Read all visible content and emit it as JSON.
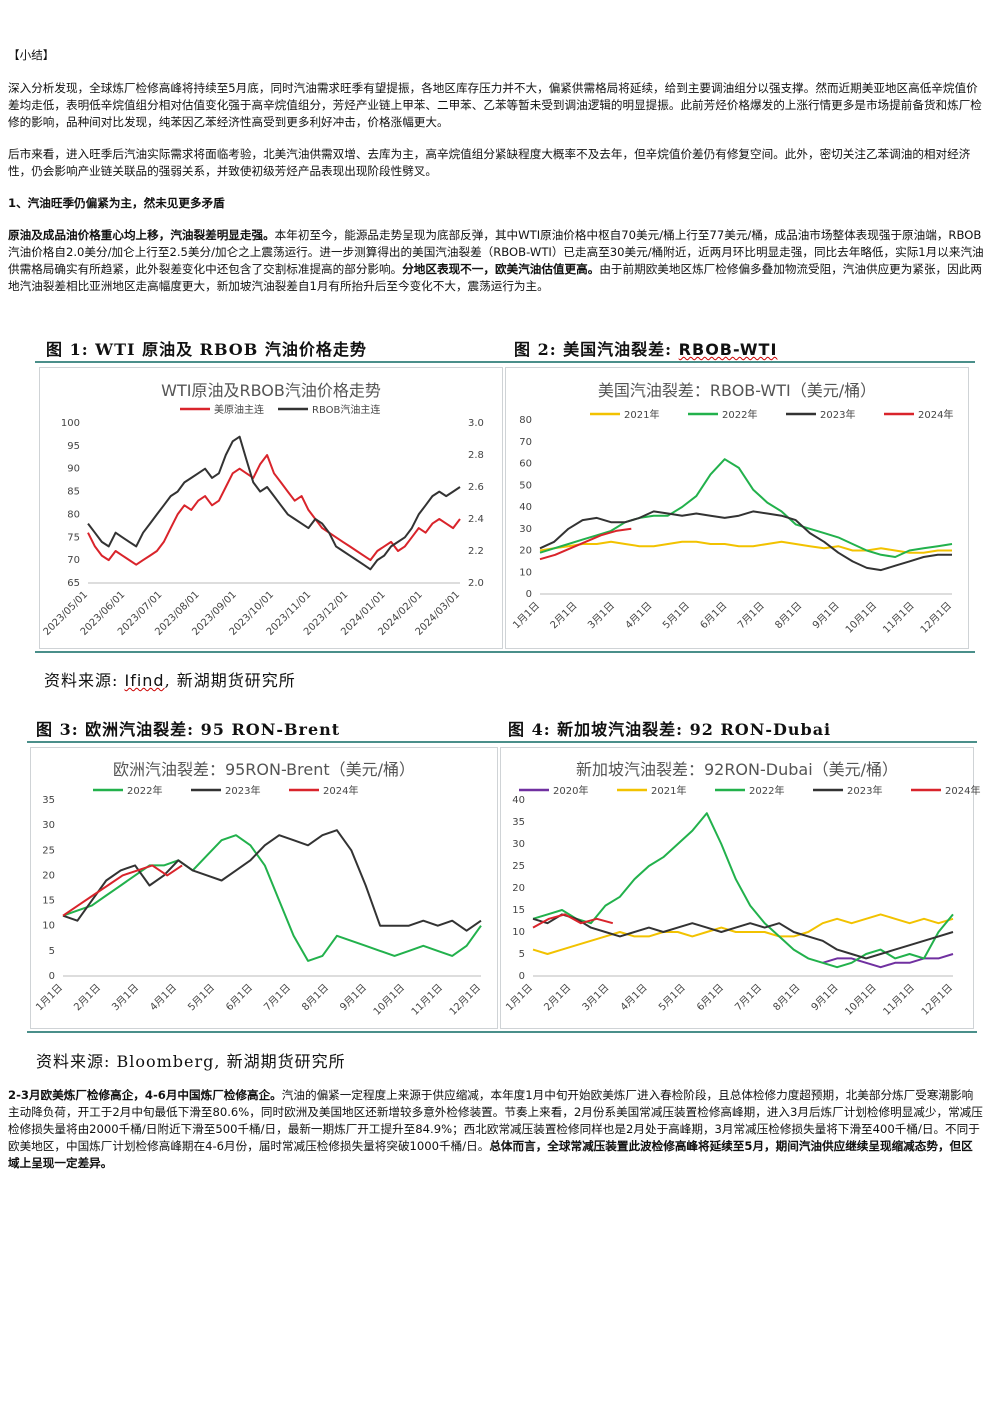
{
  "summary": {
    "heading": "【小结】",
    "para1": "深入分析发现，全球炼厂检修高峰将持续至5月底，同时汽油需求旺季有望提振，各地区库存压力并不大，偏紧供需格局将延续，给到主要调油组分以强支撑。然而近期美亚地区高低辛烷值价差均走低，表明低辛烷值组分相对估值变化强于高辛烷值组分，芳烃产业链上甲苯、二甲苯、乙苯等暂未受到调油逻辑的明显提振。此前芳烃价格爆发的上涨行情更多是市场提前备货和炼厂检修的影响，品种间对比发现，纯苯因乙苯经济性高受到更多利好冲击，价格涨幅更大。",
    "para2": "后市来看，进入旺季后汽油实际需求将面临考验，北美汽油供需双增、去库为主，高辛烷值组分紧缺程度大概率不及去年，但辛烷值价差仍有修复空间。此外，密切关注乙苯调油的相对经济性，仍会影响产业链关联品的强弱关系，并致使初级芳烃产品表现出现阶段性劈叉。"
  },
  "section1": {
    "title": "1、汽油旺季仍偏紧为主，然未见更多矛盾",
    "bold1": "原油及成品油价格重心均上移，汽油裂差明显走强。",
    "text1": "本年初至今，能源品走势呈现为底部反弹，其中WTI原油价格中枢自70美元/桶上行至77美元/桶，成品油市场整体表现强于原油端，RBOB汽油价格自2.0美分/加仑上行至2.5美分/加仑之上震荡运行。进一步测算得出的美国汽油裂差（RBOB-WTI）已走高至30美元/桶附近，近两月环比明显走强，同比去年略低，实际1月以来汽油供需格局确实有所趋紧，此外裂差变化中还包含了交割标准提高的部分影响。",
    "bold2": "分地区表现不一，欧美汽油估值更高。",
    "text2": "由于前期欧美地区炼厂检修偏多叠加物流受阻，汽油供应更为紧张，因此两地汽油裂差相比亚洲地区走高幅度更大，新加坡汽油裂差自1月有所抬升后至今变化不大，震荡运行为主。"
  },
  "figures": {
    "fig1_caption": "图 1:  WTI 原油及 RBOB 汽油价格走势",
    "fig2_caption_prefix": "图 2:  美国汽油裂差: ",
    "fig2_caption_code": "RBOB-WTI",
    "fig3_caption": "图 3:  欧洲汽油裂差: 95 RON-Brent",
    "fig4_caption": "图 4:  新加坡汽油裂差: 92 RON-Dubai",
    "source1_prefix": "资料来源: ",
    "source1_name": "Ifind",
    "source1_suffix": ", 新湖期货研究所",
    "source2": "资料来源: Bloomberg, 新湖期货研究所"
  },
  "colors": {
    "red": "#d9242b",
    "dark": "#333333",
    "green": "#22b14c",
    "gold": "#f2c200",
    "purple": "#7030a0",
    "rule": "#4a8f8a"
  },
  "section2": {
    "bold1": "2-3月欧美炼厂检修高企，4-6月中国炼厂检修高企。",
    "text1": "汽油的偏紧一定程度上来源于供应缩减，本年度1月中旬开始欧美炼厂进入春检阶段，且总体检修力度超预期，北美部分炼厂受寒潮影响主动降负荷，开工于2月中旬最低下滑至80.6%，同时欧洲及美国地区还新增较多意外检修装置。节奏上来看，2月份系美国常减压装置检修高峰期，进入3月后炼厂计划检修明显减少，常减压检修损失量将由2000千桶/日附近下滑至500千桶/日，最新一期炼厂开工提升至84.9%；西北欧常减压装置检修同样也是2月处于高峰期，3月常减压检修损失量将下滑至400千桶/日。不同于欧美地区，中国炼厂计划检修高峰期在4-6月份，届时常减压检修损失量将突破1000千桶/日。",
    "bold2": "总体而言，全球常减压装置此波检修高峰将延续至5月，期间汽油供应继续呈现缩减态势，但区域上呈现一定差异。"
  },
  "chart_data": [
    {
      "type": "line",
      "title": "WTI原油及RBOB汽油价格走势",
      "x_ticks": [
        "2023/05/01",
        "2023/06/01",
        "2023/07/01",
        "2023/08/01",
        "2023/09/01",
        "2023/10/01",
        "2023/11/01",
        "2023/12/01",
        "2024/01/01",
        "2024/02/01",
        "2024/03/01"
      ],
      "ylim_left": [
        65,
        100
      ],
      "yticks_left": [
        "100",
        "95",
        "90",
        "85",
        "80",
        "75",
        "70",
        "65"
      ],
      "ylim_right": [
        2.0,
        3.0
      ],
      "yticks_right": [
        "3.0",
        "2.8",
        "2.6",
        "2.4",
        "2.2",
        "2.0"
      ],
      "series": [
        {
          "name": "美原油主连",
          "axis": "left",
          "color": "#d9242b",
          "values": [
            76,
            73,
            71,
            70,
            72,
            71,
            70,
            69,
            70,
            71,
            72,
            74,
            77,
            80,
            82,
            81,
            83,
            84,
            82,
            83,
            86,
            89,
            90,
            89,
            88,
            91,
            93,
            89,
            87,
            85,
            83,
            84,
            81,
            79,
            77,
            76,
            75,
            74,
            73,
            72,
            71,
            70,
            72,
            73,
            74,
            72,
            73,
            75,
            77,
            76,
            78,
            79,
            78,
            77,
            79
          ]
        },
        {
          "name": "RBOB汽油主连",
          "axis": "left",
          "color": "#333333",
          "values": [
            78,
            76,
            74,
            73,
            76,
            75,
            74,
            73,
            76,
            78,
            80,
            82,
            84,
            85,
            87,
            88,
            89,
            90,
            88,
            89,
            93,
            96,
            97,
            92,
            87,
            85,
            86,
            84,
            82,
            80,
            79,
            78,
            77,
            79,
            78,
            76,
            73,
            72,
            71,
            70,
            69,
            68,
            70,
            71,
            73,
            74,
            75,
            77,
            80,
            82,
            84,
            85,
            84,
            85,
            86
          ]
        }
      ]
    },
    {
      "type": "line",
      "title": "美国汽油裂差：RBOB-WTI（美元/桶）",
      "x_ticks": [
        "1月1日",
        "2月1日",
        "3月1日",
        "4月1日",
        "5月1日",
        "6月1日",
        "7月1日",
        "8月1日",
        "9月1日",
        "10月1日",
        "11月1日",
        "12月1日"
      ],
      "ylim": [
        0,
        80
      ],
      "yticks": [
        "80",
        "70",
        "60",
        "50",
        "40",
        "30",
        "20",
        "10",
        "0"
      ],
      "series": [
        {
          "name": "2021年",
          "color": "#f2c200",
          "values": [
            20,
            21,
            22,
            23,
            23,
            24,
            23,
            22,
            22,
            23,
            24,
            24,
            23,
            23,
            22,
            22,
            23,
            24,
            23,
            22,
            21,
            22,
            20,
            20,
            21,
            20,
            19,
            19,
            20,
            20
          ]
        },
        {
          "name": "2022年",
          "color": "#22b14c",
          "values": [
            19,
            21,
            23,
            25,
            27,
            29,
            33,
            35,
            36,
            36,
            40,
            45,
            55,
            62,
            58,
            48,
            42,
            38,
            32,
            30,
            28,
            26,
            23,
            20,
            18,
            17,
            20,
            21,
            22,
            23
          ]
        },
        {
          "name": "2023年",
          "color": "#333333",
          "values": [
            21,
            24,
            30,
            34,
            35,
            33,
            33,
            35,
            38,
            37,
            36,
            37,
            36,
            35,
            36,
            38,
            37,
            36,
            34,
            28,
            24,
            19,
            15,
            12,
            11,
            13,
            15,
            17,
            18,
            18
          ]
        },
        {
          "name": "2024年",
          "color": "#d9242b",
          "values": [
            16,
            18,
            21,
            24,
            27,
            29,
            30
          ]
        }
      ]
    },
    {
      "type": "line",
      "title": "欧洲汽油裂差：95RON-Brent（美元/桶）",
      "x_ticks": [
        "1月1日",
        "2月1日",
        "3月1日",
        "4月1日",
        "5月1日",
        "6月1日",
        "7月1日",
        "8月1日",
        "9月1日",
        "10月1日",
        "11月1日",
        "12月1日"
      ],
      "ylim": [
        0,
        35
      ],
      "yticks": [
        "35",
        "30",
        "25",
        "20",
        "15",
        "10",
        "5",
        "0"
      ],
      "series": [
        {
          "name": "2022年",
          "color": "#22b14c",
          "values": [
            12,
            13,
            14,
            16,
            18,
            20,
            22,
            22,
            23,
            21,
            24,
            27,
            28,
            26,
            22,
            15,
            8,
            3,
            4,
            8,
            7,
            6,
            5,
            4,
            5,
            6,
            5,
            4,
            6,
            10
          ]
        },
        {
          "name": "2023年",
          "color": "#333333",
          "values": [
            12,
            11,
            15,
            19,
            21,
            22,
            18,
            20,
            23,
            21,
            20,
            19,
            21,
            23,
            26,
            28,
            27,
            26,
            28,
            29,
            25,
            18,
            10,
            10,
            10,
            11,
            10,
            11,
            9,
            11
          ]
        },
        {
          "name": "2024年",
          "color": "#d9242b",
          "values": [
            12,
            14,
            16,
            18,
            20,
            21,
            22,
            20,
            22
          ]
        }
      ]
    },
    {
      "type": "line",
      "title": "新加坡汽油裂差：92RON-Dubai（美元/桶）",
      "x_ticks": [
        "1月1日",
        "2月1日",
        "3月1日",
        "4月1日",
        "5月1日",
        "6月1日",
        "7月1日",
        "8月1日",
        "9月1日",
        "10月1日",
        "11月1日",
        "12月1日"
      ],
      "ylim": [
        0,
        40
      ],
      "yticks": [
        "40",
        "35",
        "30",
        "25",
        "20",
        "15",
        "10",
        "5",
        "0"
      ],
      "series": [
        {
          "name": "2020年",
          "color": "#7030a0",
          "values": [
            null,
            null,
            null,
            null,
            null,
            null,
            null,
            null,
            null,
            null,
            null,
            null,
            null,
            null,
            null,
            null,
            null,
            null,
            null,
            null,
            3,
            4,
            4,
            3,
            2,
            3,
            3,
            4,
            4,
            5
          ]
        },
        {
          "name": "2021年",
          "color": "#f2c200",
          "values": [
            6,
            5,
            6,
            7,
            8,
            9,
            10,
            9,
            9,
            10,
            10,
            9,
            10,
            11,
            10,
            10,
            10,
            9,
            9,
            10,
            12,
            13,
            12,
            13,
            14,
            13,
            12,
            13,
            12,
            13
          ]
        },
        {
          "name": "2022年",
          "color": "#22b14c",
          "values": [
            13,
            14,
            15,
            13,
            12,
            16,
            18,
            22,
            25,
            27,
            30,
            33,
            37,
            30,
            22,
            16,
            12,
            9,
            6,
            4,
            3,
            2,
            3,
            5,
            6,
            4,
            5,
            4,
            10,
            14
          ]
        },
        {
          "name": "2023年",
          "color": "#333333",
          "values": [
            13,
            12,
            14,
            13,
            11,
            10,
            9,
            10,
            11,
            10,
            11,
            12,
            11,
            10,
            11,
            12,
            11,
            12,
            10,
            9,
            8,
            6,
            5,
            4,
            5,
            6,
            7,
            8,
            9,
            10
          ]
        },
        {
          "name": "2024年",
          "color": "#d9242b",
          "values": [
            11,
            13,
            14,
            12,
            13,
            12
          ]
        }
      ]
    }
  ]
}
